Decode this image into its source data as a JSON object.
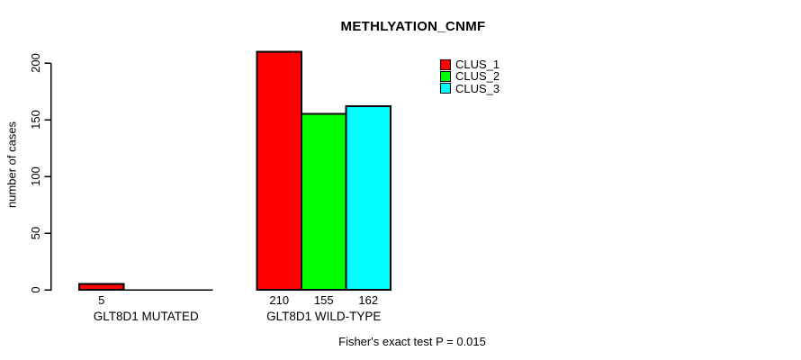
{
  "chart_data": {
    "type": "bar",
    "title": "METHLYATION_CNMF",
    "ylabel": "number of cases",
    "xlabel": "",
    "categories": [
      "GLT8D1 MUTATED",
      "GLT8D1 WILD-TYPE"
    ],
    "series": [
      {
        "name": "CLUS_1",
        "color": "#FF0000",
        "values": [
          5,
          210
        ]
      },
      {
        "name": "CLUS_2",
        "color": "#00FF00",
        "values": [
          0,
          155
        ]
      },
      {
        "name": "CLUS_3",
        "color": "#00FFFF",
        "values": [
          0,
          162
        ]
      }
    ],
    "bar_value_labels": [
      [
        "5",
        "",
        ""
      ],
      [
        "210",
        "155",
        "162"
      ]
    ],
    "yticks": [
      0,
      50,
      100,
      150,
      200
    ],
    "ylim": [
      0,
      210
    ],
    "grid": false,
    "legend_position": "upper-right-inside",
    "legend_entries": [
      "CLUS_1",
      "CLUS_2",
      "CLUS_3"
    ],
    "annotation": "Fisher's exact test P = 0.015",
    "axis_color": "#000000",
    "text_color": "#000000",
    "background_color": "#FFFFFF"
  }
}
